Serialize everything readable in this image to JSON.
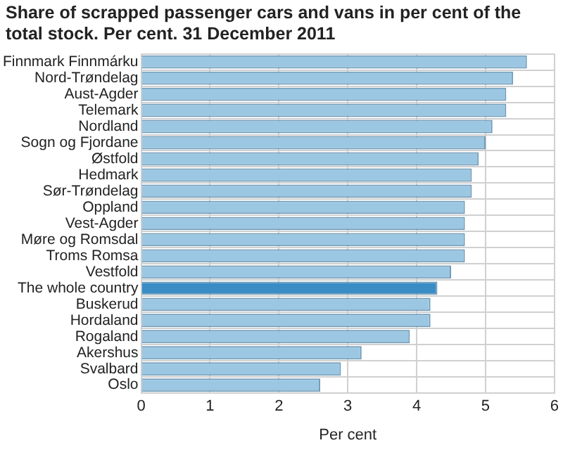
{
  "chart_data": {
    "type": "bar",
    "orientation": "horizontal",
    "title": "Share of scrapped passenger cars and vans in per cent of the total stock. Per cent. 31 December 2011",
    "xlabel": "Per cent",
    "categories": [
      "Finnmark Finnmárku",
      "Nord-Trøndelag",
      "Aust-Agder",
      "Telemark",
      "Nordland",
      "Sogn og Fjordane",
      "Østfold",
      "Hedmark",
      "Sør-Trøndelag",
      "Oppland",
      "Vest-Agder",
      "Møre og Romsdal",
      "Troms Romsa",
      "Vestfold",
      "The whole country",
      "Buskerud",
      "Hordaland",
      "Rogaland",
      "Akershus",
      "Svalbard",
      "Oslo"
    ],
    "values": [
      5.6,
      5.4,
      5.3,
      5.3,
      5.1,
      5.0,
      4.9,
      4.8,
      4.8,
      4.7,
      4.7,
      4.7,
      4.7,
      4.5,
      4.3,
      4.2,
      4.2,
      3.9,
      3.2,
      2.9,
      2.6
    ],
    "colors": [
      "#9cc7e3",
      "#9cc7e3",
      "#9cc7e3",
      "#9cc7e3",
      "#9cc7e3",
      "#9cc7e3",
      "#9cc7e3",
      "#9cc7e3",
      "#9cc7e3",
      "#9cc7e3",
      "#9cc7e3",
      "#9cc7e3",
      "#9cc7e3",
      "#9cc7e3",
      "#3a8cc4",
      "#9cc7e3",
      "#9cc7e3",
      "#9cc7e3",
      "#9cc7e3",
      "#9cc7e3",
      "#9cc7e3"
    ],
    "xlim": [
      0,
      6
    ],
    "xticks": [
      0,
      1,
      2,
      3,
      4,
      5,
      6
    ],
    "grid": true,
    "legend": false
  }
}
